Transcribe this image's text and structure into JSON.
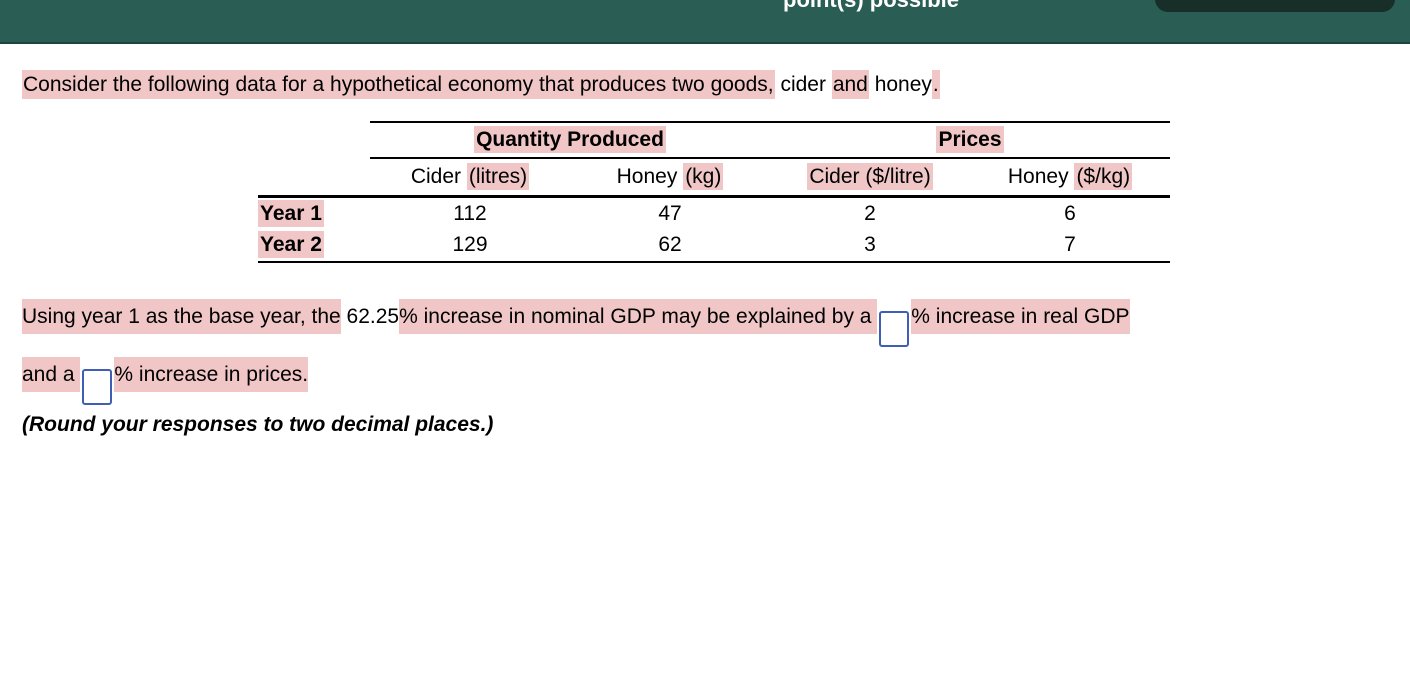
{
  "header": {
    "points_text": "point(s) possible"
  },
  "colors": {
    "header_bg": "#2a5d53",
    "pill_bg": "#182e29",
    "highlight": "#f0c6c6",
    "input_border": "#3e5fb3"
  },
  "intro": {
    "segments": [
      {
        "text": "Consider the following data for a hypothetical economy that produces two goods,"
      },
      {
        "text": " cider "
      },
      {
        "text": "and"
      },
      {
        "text": " honey"
      },
      {
        "text": "."
      }
    ]
  },
  "table": {
    "group_headers": [
      "Quantity Produced",
      "Prices"
    ],
    "col_headers": [
      {
        "pre": "Cider ",
        "hl": "(litres)"
      },
      {
        "pre": "Honey ",
        "hl": "(kg)"
      },
      {
        "pre": "",
        "hl": "Cider ($/litre)"
      },
      {
        "pre": "Honey ",
        "hl": "($/kg)"
      }
    ],
    "rows": [
      {
        "label": "Year 1",
        "values": [
          "112",
          "47",
          "2",
          "6"
        ]
      },
      {
        "label": "Year 2",
        "values": [
          "129",
          "62",
          "3",
          "7"
        ]
      }
    ]
  },
  "question": {
    "line1": {
      "seg0": "Using year 1 as the base year, the",
      "seg1": " 62.25",
      "seg2": "% increase in nominal GDP may be explained by a ",
      "seg3": "% increase in real GDP"
    },
    "line2": {
      "seg0": "and a ",
      "seg1": "% increase in prices."
    },
    "inputs": {
      "real_gdp": "",
      "prices": ""
    },
    "note": "(Round your responses to two decimal places.)"
  }
}
